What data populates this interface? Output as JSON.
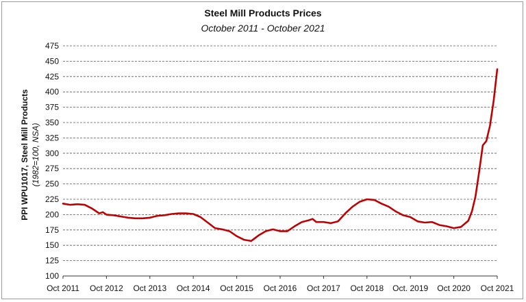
{
  "chart_data": {
    "type": "line",
    "title": "Steel Mill Products Prices",
    "subtitle": "October 2011 - October 2021",
    "ylabel": "PPI WPU1017, Steel Mill Products",
    "ylabel_note": "(1982=100, NSA)",
    "xlabel": "",
    "ylim": [
      100,
      475
    ],
    "yticks": [
      100,
      125,
      150,
      175,
      200,
      225,
      250,
      275,
      300,
      325,
      350,
      375,
      400,
      425,
      450,
      475
    ],
    "xticks": [
      "Oct 2011",
      "Oct 2012",
      "Oct 2013",
      "Oct 2014",
      "Oct 2015",
      "Oct 2016",
      "Oct 2017",
      "Oct 2018",
      "Oct. 2019",
      "Oct 2020",
      "Oct 2021"
    ],
    "grid": true,
    "legend": "none",
    "line_color": "#c00000",
    "series": [
      {
        "x": [
          "Oct 2011",
          "Dec 2011",
          "Feb 2012",
          "Apr 2012",
          "Jun 2012",
          "Jul 2012",
          "Aug 2012",
          "Sep 2012",
          "Oct 2012",
          "Dec 2012",
          "Feb 2013",
          "Apr 2013",
          "Jun 2013",
          "Aug 2013",
          "Oct 2013",
          "Dec 2013",
          "Feb 2014",
          "Apr 2014",
          "Jun 2014",
          "Aug 2014",
          "Oct 2014",
          "Dec 2014",
          "Feb 2015",
          "Apr 2015",
          "Jun 2015",
          "Aug 2015",
          "Oct 2015",
          "Dec 2015",
          "Feb 2016",
          "Apr 2016",
          "Jun 2016",
          "Aug 2016",
          "Oct 2016",
          "Dec 2016",
          "Feb 2017",
          "Apr 2017",
          "Jun 2017",
          "Jul 2017",
          "Aug 2017",
          "Oct 2017",
          "Dec 2017",
          "Feb 2018",
          "Apr 2018",
          "Jun 2018",
          "Aug 2018",
          "Oct 2018",
          "Dec 2018",
          "Feb 2019",
          "Apr 2019",
          "Jun 2019",
          "Aug 2019",
          "Oct 2019",
          "Dec 2019",
          "Feb 2020",
          "Apr 2020",
          "Jun 2020",
          "Aug 2020",
          "Oct 2020",
          "Dec 2020",
          "Feb 2021",
          "Mar 2021",
          "Apr 2021",
          "May 2021",
          "Jun 2021",
          "Jul 2021",
          "Aug 2021",
          "Sep 2021",
          "Oct 2021"
        ],
        "values": [
          218,
          216,
          217,
          216,
          210,
          206,
          202,
          204,
          200,
          199,
          197,
          195,
          194,
          194,
          195,
          198,
          199,
          201,
          202,
          202,
          201,
          196,
          187,
          178,
          176,
          173,
          165,
          159,
          157,
          166,
          173,
          176,
          173,
          173,
          181,
          188,
          191,
          193,
          188,
          188,
          186,
          189,
          202,
          213,
          221,
          225,
          224,
          218,
          213,
          205,
          199,
          196,
          189,
          187,
          188,
          183,
          181,
          178,
          180,
          190,
          205,
          230,
          270,
          313,
          320,
          345,
          385,
          437
        ]
      }
    ]
  }
}
